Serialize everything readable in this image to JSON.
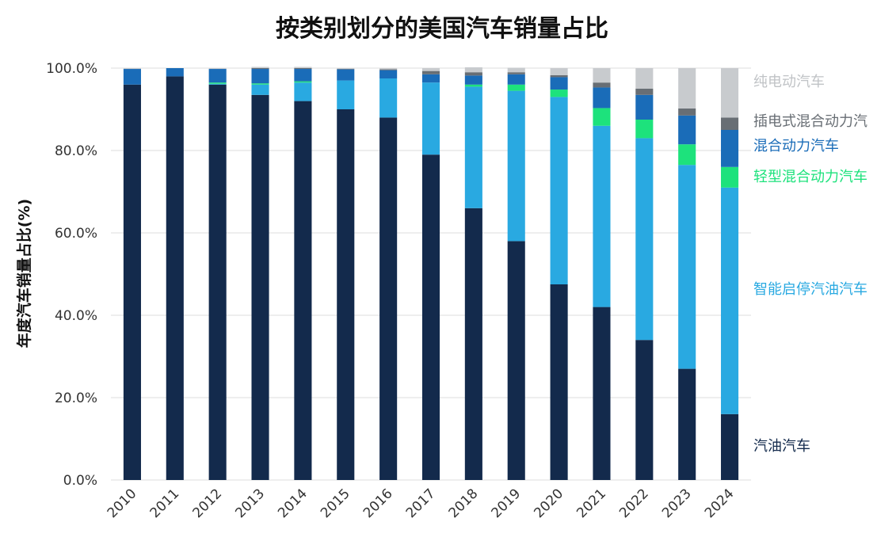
{
  "colors": {
    "gasoline": "#132a4c",
    "start_stop": "#29a9e1",
    "mild_hybrid": "#1de27c",
    "hybrid": "#1a6cb8",
    "phev": "#686e74",
    "bev": "#c8cbce"
  },
  "chart_data": {
    "type": "bar",
    "stacked": true,
    "title": "按类别划分的美国汽车销量占比",
    "ylabel": "年度汽车销量占比(%)",
    "xlabel": "",
    "ylim": [
      0,
      100
    ],
    "yticks": [
      "0.0%",
      "20.0%",
      "40.0%",
      "60.0%",
      "80.0%",
      "100.0%"
    ],
    "grid": true,
    "legend_position": "right",
    "categories": [
      "2010",
      "2011",
      "2012",
      "2013",
      "2014",
      "2015",
      "2016",
      "2017",
      "2018",
      "2019",
      "2020",
      "2021",
      "2022",
      "2023",
      "2024"
    ],
    "series": [
      {
        "name": "汽油汽车",
        "key": "gasoline",
        "values": [
          96,
          98,
          96,
          93.5,
          92,
          90,
          88,
          79,
          66,
          58,
          47.5,
          42,
          34,
          27,
          16
        ]
      },
      {
        "name": "智能启停汽油汽车",
        "key": "start_stop",
        "values": [
          0,
          0,
          0.2,
          2.5,
          4.5,
          7,
          9.5,
          17.5,
          29.5,
          36.5,
          45.5,
          44,
          49,
          49.5,
          55
        ]
      },
      {
        "name": "轻型混合动力汽车",
        "key": "mild_hybrid",
        "values": [
          0,
          0,
          0.3,
          0.3,
          0.3,
          0,
          0,
          0,
          0.5,
          1.5,
          1.8,
          4.3,
          4.5,
          5,
          5
        ]
      },
      {
        "name": "混合动力汽车",
        "key": "hybrid",
        "values": [
          3.8,
          2,
          3.3,
          3.5,
          3,
          2.7,
          2,
          2,
          2.2,
          2.5,
          3,
          5,
          6,
          7,
          9
        ]
      },
      {
        "name": "插电式混合动力汽",
        "key": "phev",
        "values": [
          0,
          0,
          0,
          0.2,
          0.2,
          0.1,
          0.2,
          0.8,
          0.8,
          0.5,
          0.5,
          1.2,
          1.5,
          1.7,
          3
        ]
      },
      {
        "name": "纯电动汽车",
        "key": "bev",
        "values": [
          0.2,
          0,
          0.2,
          0.3,
          0.3,
          0.2,
          0.3,
          0.7,
          1.2,
          1.1,
          1.7,
          3.5,
          5,
          9.8,
          12
        ]
      }
    ]
  }
}
